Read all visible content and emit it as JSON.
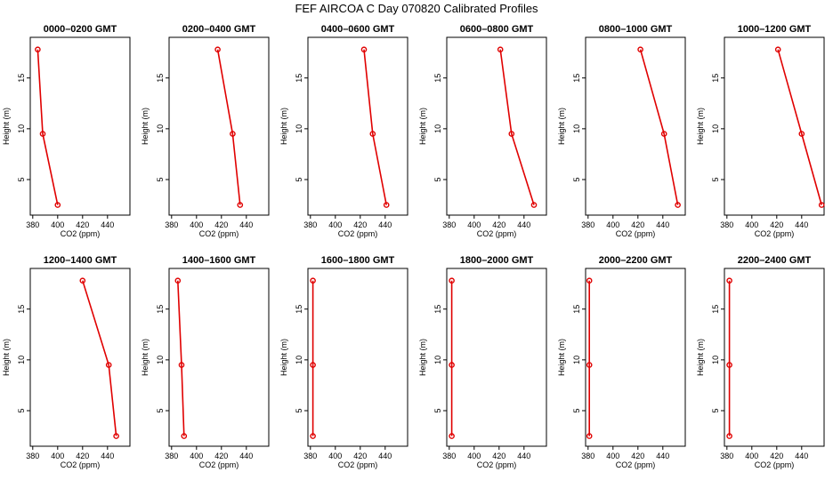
{
  "figure": {
    "title": "FEF AIRCOA C  Day 070820  Calibrated Profiles"
  },
  "style": {
    "line_color": "#e00000",
    "marker_color": "#e00000",
    "axis_color": "#000000",
    "background": "#ffffff"
  },
  "chart_data": [
    {
      "type": "line",
      "title": "0000–0200 GMT",
      "xlabel": "CO2 (ppm)",
      "ylabel": "Height (m)",
      "xlim": [
        378,
        458
      ],
      "ylim": [
        1.5,
        19
      ],
      "xticks": [
        380,
        400,
        420,
        440
      ],
      "yticks": [
        5,
        10,
        15
      ],
      "series": [
        {
          "x": [
            384,
            388,
            400
          ],
          "y": [
            17.8,
            9.5,
            2.5
          ]
        }
      ]
    },
    {
      "type": "line",
      "title": "0200–0400 GMT",
      "xlabel": "CO2 (ppm)",
      "ylabel": "Height (m)",
      "xlim": [
        378,
        458
      ],
      "ylim": [
        1.5,
        19
      ],
      "xticks": [
        380,
        400,
        420,
        440
      ],
      "yticks": [
        5,
        10,
        15
      ],
      "series": [
        {
          "x": [
            417,
            429,
            435
          ],
          "y": [
            17.8,
            9.5,
            2.5
          ]
        }
      ]
    },
    {
      "type": "line",
      "title": "0400–0600 GMT",
      "xlabel": "CO2 (ppm)",
      "ylabel": "Height (m)",
      "xlim": [
        378,
        458
      ],
      "ylim": [
        1.5,
        19
      ],
      "xticks": [
        380,
        400,
        420,
        440
      ],
      "yticks": [
        5,
        10,
        15
      ],
      "series": [
        {
          "x": [
            423,
            430,
            441
          ],
          "y": [
            17.8,
            9.5,
            2.5
          ]
        }
      ]
    },
    {
      "type": "line",
      "title": "0600–0800 GMT",
      "xlabel": "CO2 (ppm)",
      "ylabel": "Height (m)",
      "xlim": [
        378,
        458
      ],
      "ylim": [
        1.5,
        19
      ],
      "xticks": [
        380,
        400,
        420,
        440
      ],
      "yticks": [
        5,
        10,
        15
      ],
      "series": [
        {
          "x": [
            421,
            430,
            448
          ],
          "y": [
            17.8,
            9.5,
            2.5
          ]
        }
      ]
    },
    {
      "type": "line",
      "title": "0800–1000 GMT",
      "xlabel": "CO2 (ppm)",
      "ylabel": "Height (m)",
      "xlim": [
        378,
        458
      ],
      "ylim": [
        1.5,
        19
      ],
      "xticks": [
        380,
        400,
        420,
        440
      ],
      "yticks": [
        5,
        10,
        15
      ],
      "series": [
        {
          "x": [
            422,
            441,
            452
          ],
          "y": [
            17.8,
            9.5,
            2.5
          ]
        }
      ]
    },
    {
      "type": "line",
      "title": "1000–1200 GMT",
      "xlabel": "CO2 (ppm)",
      "ylabel": "Height (m)",
      "xlim": [
        378,
        458
      ],
      "ylim": [
        1.5,
        19
      ],
      "xticks": [
        380,
        400,
        420,
        440
      ],
      "yticks": [
        5,
        10,
        15
      ],
      "series": [
        {
          "x": [
            421,
            440,
            456
          ],
          "y": [
            17.8,
            9.5,
            2.5
          ]
        }
      ]
    },
    {
      "type": "line",
      "title": "1200–1400 GMT",
      "xlabel": "CO2 (ppm)",
      "ylabel": "Height (m)",
      "xlim": [
        378,
        458
      ],
      "ylim": [
        1.5,
        19
      ],
      "xticks": [
        380,
        400,
        420,
        440
      ],
      "yticks": [
        5,
        10,
        15
      ],
      "series": [
        {
          "x": [
            420,
            441,
            447
          ],
          "y": [
            17.8,
            9.5,
            2.5
          ]
        }
      ]
    },
    {
      "type": "line",
      "title": "1400–1600 GMT",
      "xlabel": "CO2 (ppm)",
      "ylabel": "Height (m)",
      "xlim": [
        378,
        458
      ],
      "ylim": [
        1.5,
        19
      ],
      "xticks": [
        380,
        400,
        420,
        440
      ],
      "yticks": [
        5,
        10,
        15
      ],
      "series": [
        {
          "x": [
            385,
            388,
            390
          ],
          "y": [
            17.8,
            9.5,
            2.5
          ]
        }
      ]
    },
    {
      "type": "line",
      "title": "1600–1800 GMT",
      "xlabel": "CO2 (ppm)",
      "ylabel": "Height (m)",
      "xlim": [
        378,
        458
      ],
      "ylim": [
        1.5,
        19
      ],
      "xticks": [
        380,
        400,
        420,
        440
      ],
      "yticks": [
        5,
        10,
        15
      ],
      "series": [
        {
          "x": [
            382,
            382,
            382
          ],
          "y": [
            17.8,
            9.5,
            2.5
          ]
        }
      ]
    },
    {
      "type": "line",
      "title": "1800–2000 GMT",
      "xlabel": "CO2 (ppm)",
      "ylabel": "Height (m)",
      "xlim": [
        378,
        458
      ],
      "ylim": [
        1.5,
        19
      ],
      "xticks": [
        380,
        400,
        420,
        440
      ],
      "yticks": [
        5,
        10,
        15
      ],
      "series": [
        {
          "x": [
            382,
            382,
            382
          ],
          "y": [
            17.8,
            9.5,
            2.5
          ]
        }
      ]
    },
    {
      "type": "line",
      "title": "2000–2200 GMT",
      "xlabel": "CO2 (ppm)",
      "ylabel": "Height (m)",
      "xlim": [
        378,
        458
      ],
      "ylim": [
        1.5,
        19
      ],
      "xticks": [
        380,
        400,
        420,
        440
      ],
      "yticks": [
        5,
        10,
        15
      ],
      "series": [
        {
          "x": [
            381,
            381,
            381
          ],
          "y": [
            17.8,
            9.5,
            2.5
          ]
        }
      ]
    },
    {
      "type": "line",
      "title": "2200–2400 GMT",
      "xlabel": "CO2 (ppm)",
      "ylabel": "Height (m)",
      "xlim": [
        378,
        458
      ],
      "ylim": [
        1.5,
        19
      ],
      "xticks": [
        380,
        400,
        420,
        440
      ],
      "yticks": [
        5,
        10,
        15
      ],
      "series": [
        {
          "x": [
            382,
            382,
            382
          ],
          "y": [
            17.8,
            9.5,
            2.5
          ]
        }
      ]
    }
  ]
}
